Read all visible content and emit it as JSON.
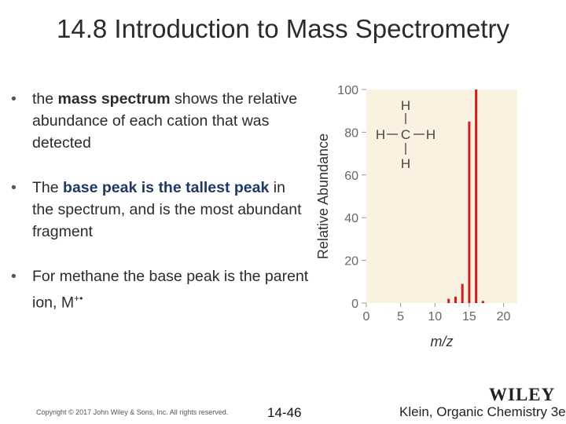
{
  "slide": {
    "title": "14.8 Introduction to Mass Spectrometry",
    "bullets": [
      {
        "pre": "the ",
        "em": "mass spectrum",
        "post": " shows the relative abundance of each cation that was detected"
      },
      {
        "pre": "The ",
        "em": "base peak is the tallest peak",
        "post": " in the spectrum, and is the most abundant fragment"
      },
      {
        "pre": "For methane the base peak is the parent ion, M",
        "sup": "+•",
        "post": ""
      }
    ],
    "footer": {
      "copyright": "Copyright © 2017 John Wiley & Sons, Inc. All rights reserved.",
      "page": "14-46",
      "book": "Klein, Organic Chemistry 3e",
      "logo": "WILEY"
    }
  },
  "chart_data": {
    "type": "bar",
    "xlabel": "m/z",
    "ylabel": "Relative Abundance",
    "xlim": [
      0,
      22
    ],
    "ylim": [
      0,
      100
    ],
    "xticks": [
      0,
      5,
      10,
      15,
      20
    ],
    "yticks": [
      0,
      20,
      40,
      60,
      80,
      100
    ],
    "x": [
      12,
      13,
      14,
      15,
      16,
      17
    ],
    "values": [
      2,
      3,
      9,
      85,
      100,
      1
    ],
    "colors": {
      "bar": "#cc1f1f",
      "plot_bg": "#faf1e1",
      "axis": "#999999",
      "tick_text": "#666666"
    },
    "annotation": {
      "structure": [
        "H",
        "H",
        "C",
        "H",
        "H"
      ]
    }
  }
}
